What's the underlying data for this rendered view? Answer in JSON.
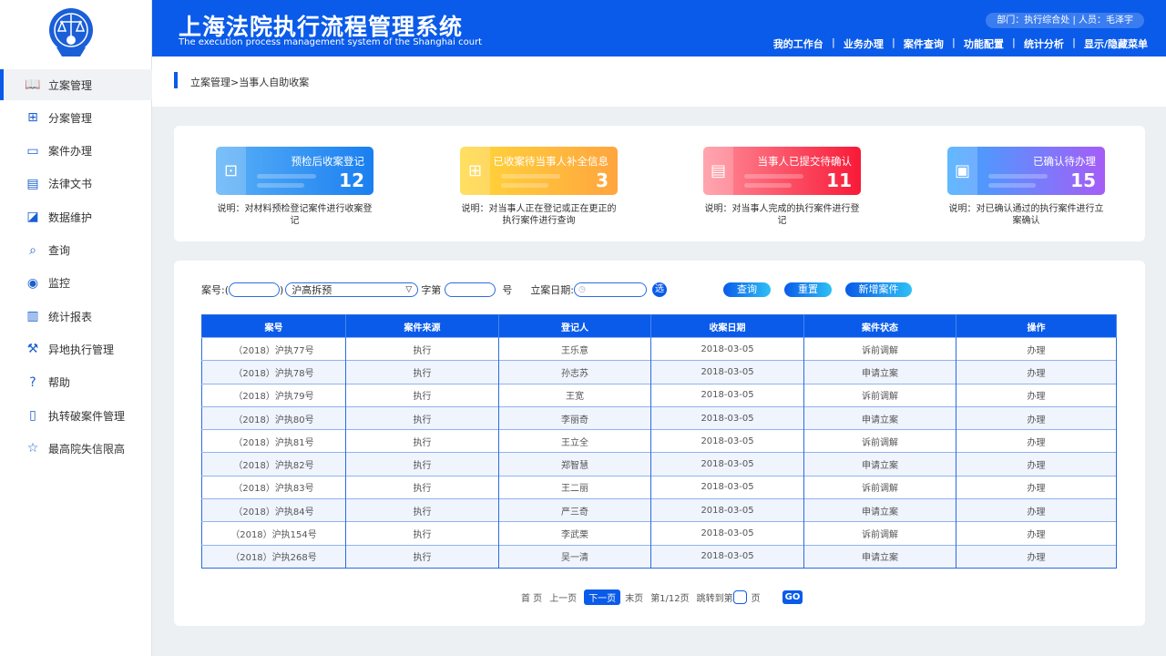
{
  "app": {
    "title": "上海法院执行流程管理系统",
    "subtitle": "The execution process management system of the Shanghai court",
    "user": "部门：执行综合处  |  人员：毛泽宇"
  },
  "topnav": [
    "我的工作台",
    "业务办理",
    "案件查询",
    "功能配置",
    "统计分析",
    "显示/隐藏菜单"
  ],
  "sidebar": [
    {
      "label": "立案管理",
      "icon": "book-icon"
    },
    {
      "label": "分案管理",
      "icon": "hierarchy-icon"
    },
    {
      "label": "案件办理",
      "icon": "monitor-icon"
    },
    {
      "label": "法律文书",
      "icon": "document-icon"
    },
    {
      "label": "数据维护",
      "icon": "chart-icon"
    },
    {
      "label": "查询",
      "icon": "search-icon"
    },
    {
      "label": "监控",
      "icon": "eye-icon"
    },
    {
      "label": "统计报表",
      "icon": "bar-chart-icon"
    },
    {
      "label": "异地执行管理",
      "icon": "gavel-icon"
    },
    {
      "label": "帮助",
      "icon": "help-icon"
    },
    {
      "label": "执转破案件管理",
      "icon": "folder-icon"
    },
    {
      "label": "最高院失信限高",
      "icon": "star-icon"
    }
  ],
  "breadcrumb": "立案管理>当事人自助收案",
  "stats": [
    {
      "label": "预检后收案登记",
      "value": "12",
      "desc": "说明：对材料预检登记案件进行收案登记",
      "color": "#2f8ff3"
    },
    {
      "label": "已收案待当事人补全信息",
      "value": "3",
      "desc": "说明：对当事人正在登记或正在更正的执行案件进行查询",
      "color": "#ffb53a"
    },
    {
      "label": "当事人已提交待确认",
      "value": "11",
      "desc": "说明：对当事人完成的执行案件进行登记",
      "color": "#f7304a"
    },
    {
      "label": "已确认待办理",
      "value": "15",
      "desc": "说明：对已确认通过的执行案件进行立案确认",
      "color": "#8d5cf5"
    }
  ],
  "filters": {
    "case_no_label": "案号:",
    "court_select": "沪高拆预",
    "zi_label": "字第",
    "hao_label": "号",
    "date_label": "立案日期:",
    "pick_label": "选",
    "query": "查询",
    "reset": "重置",
    "add": "新增案件"
  },
  "table": {
    "columns": [
      "案号",
      "案件来源",
      "登记人",
      "收案日期",
      "案件状态",
      "操作"
    ],
    "rows": [
      [
        "（2018）沪执77号",
        "执行",
        "王乐意",
        "2018-03-05",
        "诉前调解",
        "办理"
      ],
      [
        "（2018）沪执78号",
        "执行",
        "孙志苏",
        "2018-03-05",
        "申请立案",
        "办理"
      ],
      [
        "（2018）沪执79号",
        "执行",
        "王宽",
        "2018-03-05",
        "诉前调解",
        "办理"
      ],
      [
        "（2018）沪执80号",
        "执行",
        "李丽奇",
        "2018-03-05",
        "申请立案",
        "办理"
      ],
      [
        "（2018）沪执81号",
        "执行",
        "王立全",
        "2018-03-05",
        "诉前调解",
        "办理"
      ],
      [
        "（2018）沪执82号",
        "执行",
        "郑智慧",
        "2018-03-05",
        "申请立案",
        "办理"
      ],
      [
        "（2018）沪执83号",
        "执行",
        "王二丽",
        "2018-03-05",
        "诉前调解",
        "办理"
      ],
      [
        "（2018）沪执84号",
        "执行",
        "严三奇",
        "2018-03-05",
        "申请立案",
        "办理"
      ],
      [
        "（2018）沪执154号",
        "执行",
        "李武栗",
        "2018-03-05",
        "诉前调解",
        "办理"
      ],
      [
        "（2018）沪执268号",
        "执行",
        "吴一清",
        "2018-03-05",
        "申请立案",
        "办理"
      ]
    ]
  },
  "pager": {
    "first": "首 页",
    "prev": "上一页",
    "next": "下一页",
    "last": "末页",
    "info": "第1/12页",
    "jump": "跳转到第",
    "page": "页",
    "go": "GO"
  }
}
